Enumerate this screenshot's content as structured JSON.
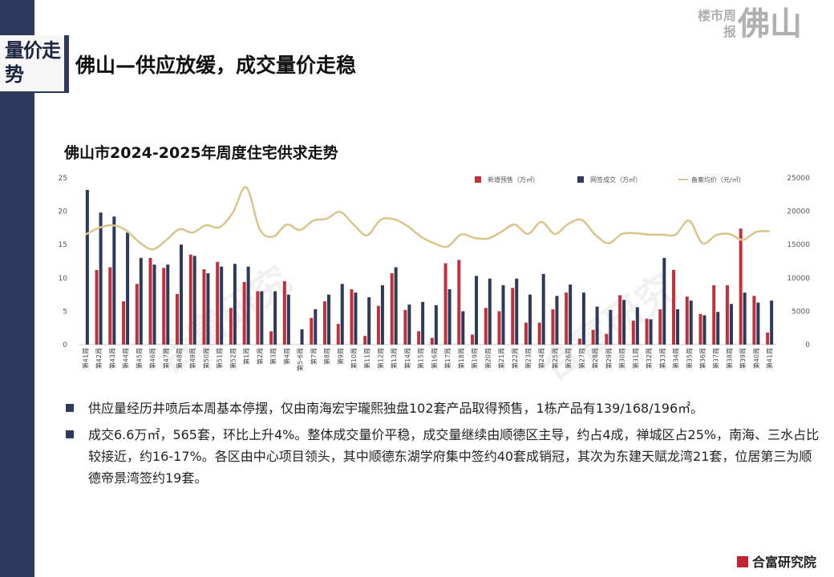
{
  "header": {
    "section_tag": "量价走势",
    "page_title": "佛山—供应放缓，成交量价走稳",
    "brand_small": "楼市周报",
    "brand_big": "佛山"
  },
  "chart_title": "佛山市2024-2025年周度住宅供求走势",
  "chart_data": {
    "type": "bar",
    "categories": [
      "第41周",
      "第42周",
      "第43周",
      "第44周",
      "第45周",
      "第46周",
      "第47周",
      "第48周",
      "第49周",
      "第50周",
      "第51周",
      "第52周",
      "第1周",
      "第2周",
      "第3周",
      "第4周",
      "第5-6周",
      "第7周",
      "第8周",
      "第9周",
      "第10周",
      "第11周",
      "第12周",
      "第13周",
      "第14周",
      "第15周",
      "第16周",
      "第17周",
      "第18周",
      "第19周",
      "第20周",
      "第21周",
      "第22周",
      "第23周",
      "第24周",
      "第25周",
      "第26周",
      "第27周",
      "第28周",
      "第29周",
      "第30周",
      "第31周",
      "第32周",
      "第33周",
      "第34周",
      "第35周",
      "第36周",
      "第37周",
      "第38周",
      "第39周",
      "第40周",
      "第41周"
    ],
    "series": [
      {
        "name": "新增预售（万㎡）",
        "axis": "left",
        "color": "#c0313e",
        "values": [
          0,
          11.2,
          11.6,
          6.5,
          9.1,
          13.0,
          11.5,
          7.6,
          13.5,
          11.3,
          12.4,
          5.5,
          9.4,
          8.0,
          2.0,
          9.5,
          0,
          4.0,
          6.5,
          3.1,
          8.3,
          1.3,
          5.8,
          10.7,
          5.2,
          2.0,
          1.0,
          12.2,
          12.7,
          1.5,
          5.5,
          5.0,
          8.5,
          3.3,
          3.3,
          5.3,
          7.8,
          0.9,
          2.2,
          1.6,
          7.4,
          3.6,
          3.9,
          5.3,
          11.2,
          7.2,
          4.6,
          8.9,
          8.9,
          17.4,
          7.3,
          1.8
        ]
      },
      {
        "name": "网签成交（万㎡）",
        "axis": "left",
        "color": "#2d3a5c",
        "values": [
          23.2,
          19.8,
          19.2,
          16.8,
          13.0,
          12.0,
          12.0,
          15.0,
          13.3,
          10.7,
          11.7,
          12.1,
          11.7,
          8.0,
          8.0,
          7.5,
          2.3,
          5.3,
          7.5,
          9.1,
          7.8,
          7.1,
          8.9,
          11.6,
          6.0,
          6.4,
          5.9,
          8.3,
          5.0,
          10.3,
          9.9,
          8.9,
          9.9,
          7.5,
          10.6,
          7.3,
          9.0,
          7.8,
          5.7,
          5.2,
          6.7,
          5.6,
          3.8,
          13.0,
          5.3,
          6.6,
          4.4,
          4.9,
          6.1,
          7.8,
          6.3,
          6.6
        ]
      },
      {
        "name": "备案均价（元/㎡）",
        "axis": "right",
        "color": "#d9c58c",
        "values": [
          16500,
          17500,
          17900,
          17200,
          15400,
          14300,
          15600,
          17300,
          16800,
          17900,
          17600,
          19800,
          23600,
          17300,
          16200,
          18000,
          17200,
          18600,
          18900,
          19900,
          18000,
          16400,
          18700,
          18800,
          17800,
          16200,
          15200,
          14700,
          16500,
          16000,
          15900,
          16900,
          18000,
          16600,
          18400,
          16600,
          18100,
          18700,
          16500,
          15200,
          16600,
          16700,
          16500,
          16500,
          16500,
          18600,
          15200,
          16400,
          16600,
          15700,
          16900,
          17000
        ]
      }
    ],
    "ylim_left": [
      0,
      25
    ],
    "yticks_left": [
      "0",
      "5",
      "10",
      "15",
      "20",
      "25"
    ],
    "ylim_right": [
      0,
      25000
    ],
    "yticks_right": [
      "0",
      "5000",
      "10000",
      "15000",
      "20000",
      "25000"
    ],
    "legend": [
      "新增预售（万㎡）",
      "网签成交（万㎡）",
      "备案均价（元/㎡）"
    ],
    "legend_position": "top-right"
  },
  "bullets": [
    "供应量经历井喷后本周基本停摆，仅由南海宏宇瓏熙独盘102套产品取得预售，1栋产品有139/168/196㎡。",
    "成交6.6万㎡，565套，环比上升4%。整体成交量价平稳，成交量继续由顺德区主导，约占4成，禅城区占25%，南海、三水占比较接近，约16-17%。各区由中心项目领头，其中顺德东湖学府集中签约40套成销冠，其次为东建天赋龙湾21套，位居第三为顺德帝景湾签约19套。"
  ],
  "footer_logo": "合富研究院",
  "watermark": "合富研究"
}
